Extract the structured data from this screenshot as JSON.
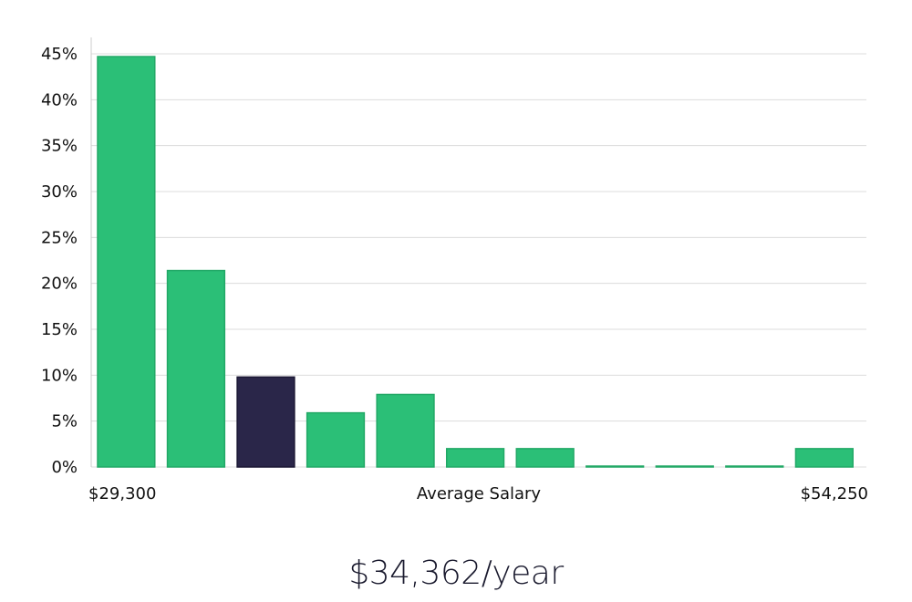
{
  "chart_data": {
    "type": "bar",
    "title": "",
    "xlabel": "Average Salary",
    "ylabel": "",
    "x_range_labels": {
      "min": "$29,300",
      "max": "$54,250"
    },
    "ylim": [
      0,
      45
    ],
    "yticks": [
      0,
      5,
      10,
      15,
      20,
      25,
      30,
      35,
      40,
      45
    ],
    "ytick_labels": [
      "0%",
      "5%",
      "10%",
      "15%",
      "20%",
      "25%",
      "30%",
      "35%",
      "40%",
      "45%"
    ],
    "grid": true,
    "bins": [
      1,
      2,
      3,
      4,
      5,
      6,
      7,
      8,
      9,
      10,
      11
    ],
    "values": [
      44.7,
      21.4,
      9.8,
      5.9,
      7.9,
      2.0,
      2.0,
      0.1,
      0.1,
      0.1,
      2.0
    ],
    "highlight_index": 2,
    "colors": {
      "bar": "#2bbf77",
      "bar_stroke": "#22a866",
      "highlight": "#2a2649",
      "highlight_stroke": "#1a1733",
      "grid": "#dcdcdc",
      "axis": "#cccccc"
    }
  },
  "summary": {
    "salary_text": "$34,362/year"
  }
}
